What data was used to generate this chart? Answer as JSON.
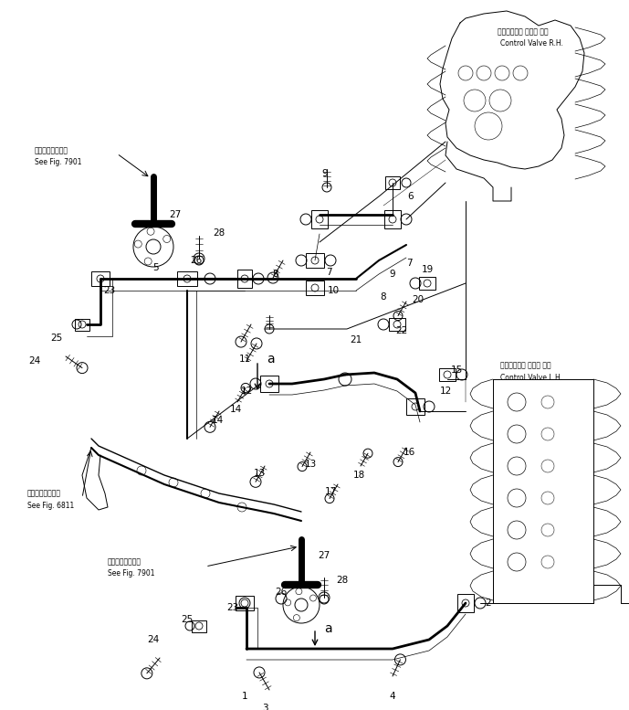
{
  "bg_color": "#ffffff",
  "line_color": "#000000",
  "fig_width": 6.89,
  "fig_height": 7.77,
  "dpi": 100,
  "labels": {
    "control_valve_rh_jp": "コントロール バルブ 右側",
    "control_valve_rh_en": "Control Valve R.H.",
    "control_valve_lh_jp": "コントロール バルブ 左側",
    "control_valve_lh_en": "Control Valve L.H.",
    "see_fig_7901_jp1": "第７９０１図参照",
    "see_fig_7901_en1": "See Fig. 7901",
    "see_fig_6811_jp": "第６８１１図参照",
    "see_fig_6811_en": "See Fig. 6811",
    "see_fig_7901_jp2": "第７９０１図参照",
    "see_fig_7901_en2": "See Fig. 7901"
  }
}
